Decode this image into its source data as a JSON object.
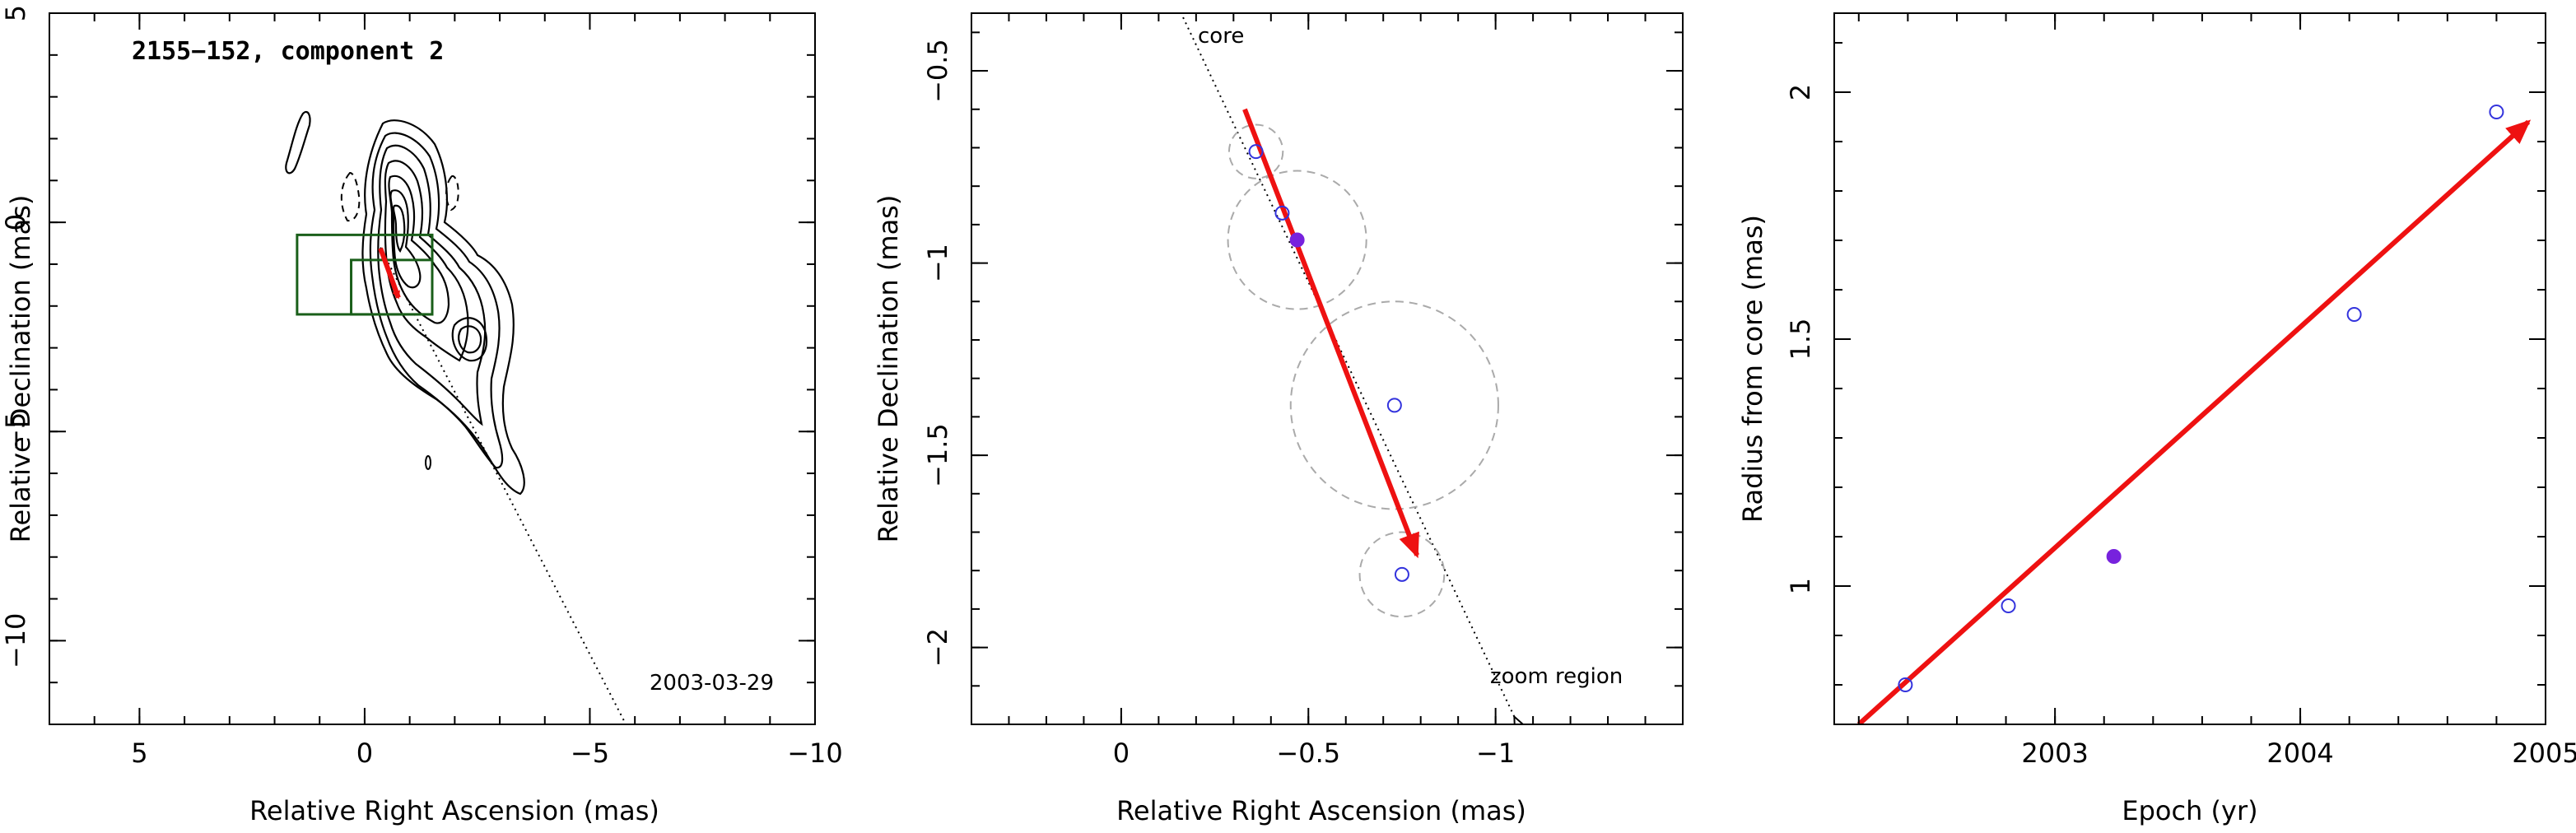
{
  "chart_data": [
    {
      "type": "contour",
      "title": "2155−152, component 2",
      "epoch_label": "2003-03-29",
      "xlabel": "Relative Right Ascension (mas)",
      "ylabel": "Relative Declination (mas)",
      "xlim": [
        7,
        -10
      ],
      "ylim": [
        -12,
        5
      ],
      "x_ticks": [
        5,
        0,
        -5,
        -10
      ],
      "x_tick_labels": [
        "5",
        "0",
        "−5",
        "−10"
      ],
      "y_ticks": [
        5,
        0,
        -5,
        -10
      ],
      "y_tick_labels": [
        "5",
        "0",
        "−5",
        "−10"
      ],
      "zoom_box": {
        "x": [
          1.5,
          -1.5
        ],
        "y": [
          -2.2,
          -0.3
        ]
      },
      "zoom_box_inner": {
        "x": [
          0.3,
          -1.5
        ],
        "y": [
          -2.2,
          -0.9
        ]
      },
      "motion_arrow": {
        "x": [
          -0.35,
          -0.75
        ],
        "y": [
          -0.62,
          -1.8
        ]
      },
      "trajectory": {
        "x": [
          -0.35,
          -5.8
        ],
        "y": [
          -0.6,
          -12
        ]
      },
      "colors": {
        "contour": "#000000",
        "zoom_box": "#1a5f1a",
        "arrow": "#ee1111"
      }
    },
    {
      "type": "scatter",
      "xlabel": "Relative Right Ascension (mas)",
      "ylabel": "Relative Declination (mas)",
      "xlim": [
        0.4,
        -1.5
      ],
      "ylim": [
        -2.2,
        -0.35
      ],
      "x_ticks": [
        0,
        -0.5,
        -1
      ],
      "x_tick_labels": [
        "0",
        "−0.5",
        "−1"
      ],
      "y_ticks": [
        -0.5,
        -1,
        -1.5,
        -2
      ],
      "y_tick_labels": [
        "−0.5",
        "−1",
        "−1.5",
        "−2"
      ],
      "annotations": [
        "core",
        "zoom region"
      ],
      "points": [
        {
          "x": -0.36,
          "y": -0.71,
          "radius": 0.07,
          "filled": false
        },
        {
          "x": -0.43,
          "y": -0.87,
          "radius": 0.0,
          "filled": false
        },
        {
          "x": -0.47,
          "y": -0.94,
          "radius": 0.18,
          "filled": true
        },
        {
          "x": -0.73,
          "y": -1.37,
          "radius": 0.27,
          "filled": false
        },
        {
          "x": -0.75,
          "y": -1.81,
          "radius": 0.11,
          "filled": false
        }
      ],
      "motion_arrow": {
        "x": [
          -0.33,
          -0.79
        ],
        "y": [
          -0.6,
          -1.76
        ]
      },
      "trajectory": {
        "x": [
          -0.16,
          -1.05
        ],
        "y": [
          -0.35,
          -2.18
        ]
      },
      "colors": {
        "point": "#3333dd",
        "filled_point": "#7722dd",
        "error_circle": "#aaaaaa",
        "arrow": "#ee1111"
      }
    },
    {
      "type": "scatter",
      "xlabel": "Epoch (yr)",
      "ylabel": "Radius from core (mas)",
      "xlim": [
        2002.1,
        2005.0
      ],
      "ylim": [
        0.72,
        2.16
      ],
      "x_ticks": [
        2003,
        2004,
        2005
      ],
      "x_tick_labels": [
        "2003",
        "2004",
        "2005"
      ],
      "y_ticks": [
        1,
        1.5,
        2
      ],
      "y_tick_labels": [
        "1",
        "1.5",
        "2"
      ],
      "points": [
        {
          "x": 2002.39,
          "y": 0.8,
          "filled": false
        },
        {
          "x": 2002.81,
          "y": 0.96,
          "filled": false
        },
        {
          "x": 2003.24,
          "y": 1.06,
          "filled": true
        },
        {
          "x": 2004.22,
          "y": 1.55,
          "filled": false
        },
        {
          "x": 2004.8,
          "y": 1.96,
          "filled": false
        }
      ],
      "fit": {
        "x": [
          2002.2,
          2004.93
        ],
        "y": [
          0.72,
          1.94
        ]
      },
      "colors": {
        "point": "#3333dd",
        "filled_point": "#7722dd",
        "arrow": "#ee1111"
      }
    }
  ]
}
